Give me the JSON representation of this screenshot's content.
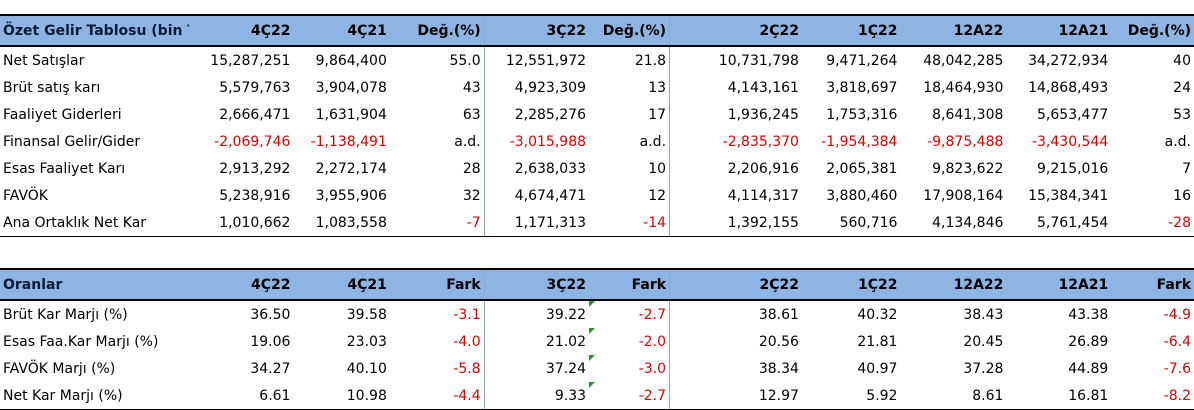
{
  "income": {
    "headers": [
      "Özet Gelir Tablosu (bin TL)",
      "4Ç22",
      "4Ç21",
      "Değ.(%)",
      "3Ç22",
      "Değ.(%)",
      "2Ç22",
      "1Ç22",
      "12A22",
      "12A21",
      "Değ.(%)"
    ],
    "rows": [
      {
        "label": "Net Satışlar",
        "values": [
          "15,287,251",
          "9,864,400",
          "55.0",
          "12,551,972",
          "21.8",
          "10,731,798",
          "9,471,264",
          "48,042,285",
          "34,272,934",
          "40"
        ]
      },
      {
        "label": "Brüt satış karı",
        "values": [
          "5,579,763",
          "3,904,078",
          "43",
          "4,923,309",
          "13",
          "4,143,161",
          "3,818,697",
          "18,464,930",
          "14,868,493",
          "24"
        ]
      },
      {
        "label": "Faaliyet Giderleri",
        "values": [
          "2,666,471",
          "1,631,904",
          "63",
          "2,285,276",
          "17",
          "1,936,245",
          "1,753,316",
          "8,641,308",
          "5,653,477",
          "53"
        ]
      },
      {
        "label": "Finansal Gelir/Gider",
        "values": [
          "-2,069,746",
          "-1,138,491",
          "a.d.",
          "-3,015,988",
          "a.d.",
          "-2,835,370",
          "-1,954,384",
          "-9,875,488",
          "-3,430,544",
          "a.d."
        ]
      },
      {
        "label": "Esas Faaliyet Karı",
        "values": [
          "2,913,292",
          "2,272,174",
          "28",
          "2,638,033",
          "10",
          "2,206,916",
          "2,065,381",
          "9,823,622",
          "9,215,016",
          "7"
        ]
      },
      {
        "label": "FAVÖK",
        "values": [
          "5,238,916",
          "3,955,906",
          "32",
          "4,674,471",
          "12",
          "4,114,317",
          "3,880,460",
          "17,908,164",
          "15,384,341",
          "16"
        ]
      },
      {
        "label": "Ana Ortaklık Net Kar",
        "values": [
          "1,010,662",
          "1,083,558",
          "-7",
          "1,171,313",
          "-14",
          "1,392,155",
          "560,716",
          "4,134,846",
          "5,761,454",
          "-28"
        ]
      }
    ]
  },
  "ratios": {
    "headers": [
      "Oranlar",
      "4Ç22",
      "4Ç21",
      "Fark",
      "3Ç22",
      "Fark",
      "2Ç22",
      "1Ç22",
      "12A22",
      "12A21",
      "Fark"
    ],
    "rows": [
      {
        "label": "Brüt Kar Marjı (%)",
        "values": [
          "36.50",
          "39.58",
          "-3.1",
          "39.22",
          "-2.7",
          "38.61",
          "40.32",
          "38.43",
          "43.38",
          "-4.9"
        ]
      },
      {
        "label": "Esas Faa.Kar Marjı (%)",
        "values": [
          "19.06",
          "23.03",
          "-4.0",
          "21.02",
          "-2.0",
          "20.56",
          "21.81",
          "20.45",
          "26.89",
          "-6.4"
        ]
      },
      {
        "label": "FAVÖK Marjı (%)",
        "values": [
          "34.27",
          "40.10",
          "-5.8",
          "37.24",
          "-3.0",
          "38.34",
          "40.97",
          "37.28",
          "44.89",
          "-7.6"
        ]
      },
      {
        "label": "Net Kar Marjı (%)",
        "values": [
          "6.61",
          "10.98",
          "-4.4",
          "9.33",
          "-2.7",
          "12.97",
          "5.92",
          "8.61",
          "16.81",
          "-8.2"
        ]
      }
    ]
  },
  "colors": {
    "header_bg": "#8db4e2",
    "negative": "#e00000",
    "comment_marker": "#2e8b2e"
  }
}
